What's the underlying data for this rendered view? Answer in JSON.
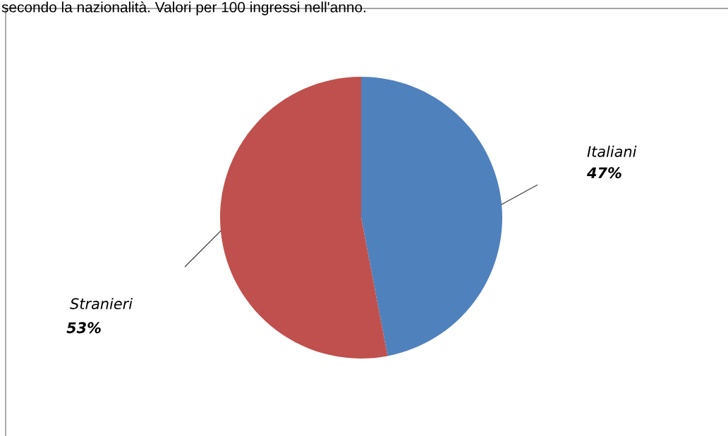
{
  "chart_data": {
    "type": "pie",
    "title": "secondo la nazionalità. Valori per 100 ingressi nell'anno.",
    "categories": [
      "Italiani",
      "Stranieri"
    ],
    "values": [
      47,
      53
    ],
    "colors": [
      "#4f81bd",
      "#c0504d"
    ],
    "value_labels": [
      "47%",
      "53%"
    ],
    "legend": false
  }
}
